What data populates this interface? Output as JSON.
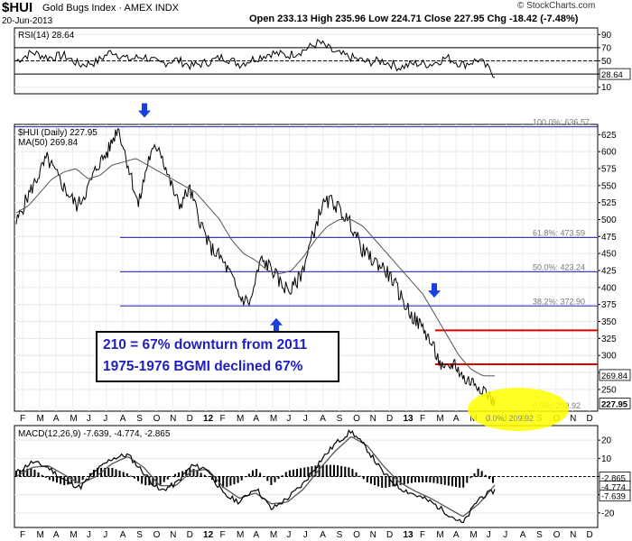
{
  "header": {
    "symbol": "$HUI",
    "name": "Gold Bugs Index · AMEX INDX",
    "date": "20-Jun-2013",
    "ohlc": "Open 233.13  High 235.96  Low 224.71  Close 227.95  Chg -18.42 (-7.48%)",
    "brand": "© StockCharts.com"
  },
  "colors": {
    "fib": "#2020b0",
    "resistance": "#e00000",
    "arrow": "#1a3ee0",
    "annotation_text": "#1f1fbf",
    "highlight": "#ffff00"
  },
  "chart_data": [
    {
      "type": "line",
      "title": "RSI(14) 28.64",
      "legend": "RSI(14) 28.64",
      "y_ticks": [
        10,
        30,
        50,
        70,
        90
      ],
      "ylim": [
        0,
        100
      ],
      "last_value_label": "28.64",
      "reference_lines": [
        30,
        50,
        70
      ],
      "series": [
        {
          "name": "RSI(14)",
          "approx_values": [
            50,
            63,
            55,
            58,
            44,
            48,
            65,
            52,
            57,
            45,
            52,
            42,
            48,
            56,
            45,
            54,
            62,
            58,
            66,
            78,
            62,
            55,
            48,
            50,
            40,
            46,
            45,
            55,
            44,
            52,
            28.64
          ]
        }
      ]
    },
    {
      "type": "line",
      "title": "$HUI (Daily) 227.95",
      "legend": [
        "$HUI (Daily) 227.95",
        "MA(50) 269.84"
      ],
      "y_ticks": [
        250,
        275,
        300,
        325,
        350,
        375,
        400,
        425,
        450,
        475,
        500,
        525,
        550,
        575,
        600,
        625
      ],
      "ylim": [
        218,
        640
      ],
      "x_tick_labels": [
        "F",
        "M",
        "A",
        "M",
        "J",
        "J",
        "A",
        "S",
        "O",
        "N",
        "D",
        "12",
        "F",
        "M",
        "A",
        "M",
        "J",
        "J",
        "A",
        "S",
        "O",
        "N",
        "D",
        "13",
        "F",
        "M",
        "A",
        "M",
        "J",
        "J",
        "A",
        "S",
        "O",
        "N",
        "D"
      ],
      "last_price_label": "227.95",
      "ma_label": "269.84",
      "series": [
        {
          "name": "$HUI (Daily)",
          "approx_values": [
            495,
            530,
            560,
            590,
            565,
            540,
            520,
            545,
            580,
            600,
            636.57,
            580,
            520,
            590,
            610,
            560,
            520,
            545,
            500,
            460,
            445,
            420,
            385,
            378,
            440,
            430,
            405,
            395,
            420,
            470,
            520,
            528,
            510,
            490,
            455,
            440,
            430,
            410,
            380,
            355,
            340,
            310,
            275,
            290,
            265,
            260,
            250,
            227.95
          ]
        },
        {
          "name": "MA(50)",
          "approx_values": [
            510,
            520,
            540,
            560,
            570,
            575,
            560,
            565,
            580,
            585,
            590,
            580,
            570,
            560,
            550,
            540,
            520,
            500,
            470,
            450,
            440,
            425,
            420,
            425,
            445,
            470,
            490,
            500,
            500,
            490,
            470,
            450,
            430,
            410,
            390,
            360,
            330,
            300,
            280,
            270,
            269.84
          ]
        }
      ],
      "fibonacci": [
        {
          "label": "100.0%: 636.57",
          "value": 636.57
        },
        {
          "label": "61.8%: 473.59",
          "value": 473.59
        },
        {
          "label": "50.0%: 423.24",
          "value": 423.24
        },
        {
          "label": "38.2%: 372.90",
          "value": 372.9
        },
        {
          "label": "0.0%: 209.92",
          "value": 209.92
        }
      ],
      "resistance_lines": [
        337,
        287
      ],
      "annotations": [
        "210 = 67% downturn from 2011",
        "1975-1976 BGMI declined 67%"
      ]
    },
    {
      "type": "line",
      "title": "MACD(12,26,9) -7.639, -4.774, -2.865",
      "legend": "MACD(12,26,9) -7.639, -4.774, -2.865",
      "y_ticks": [
        -20,
        -10,
        0,
        10,
        20
      ],
      "ylim": [
        -28,
        28
      ],
      "last_labels": [
        "-2.865",
        "-4.774",
        "-7.639"
      ],
      "x_tick_labels": [
        "F",
        "M",
        "A",
        "M",
        "J",
        "J",
        "A",
        "S",
        "O",
        "N",
        "D",
        "12",
        "F",
        "M",
        "A",
        "M",
        "J",
        "J",
        "A",
        "S",
        "O",
        "N",
        "D",
        "13",
        "F",
        "M",
        "A",
        "M",
        "J",
        "J",
        "A",
        "S",
        "O",
        "N",
        "D"
      ],
      "series": [
        {
          "name": "MACD",
          "approx_values": [
            2,
            8,
            5,
            -2,
            -6,
            3,
            10,
            12,
            2,
            -8,
            -4,
            6,
            4,
            -10,
            -14,
            -6,
            -18,
            -12,
            -4,
            8,
            18,
            25,
            15,
            2,
            -6,
            -10,
            -14,
            -20,
            -26,
            -12,
            -7.639
          ]
        },
        {
          "name": "Signal",
          "approx_values": [
            0,
            5,
            6,
            1,
            -4,
            0,
            7,
            11,
            5,
            -5,
            -5,
            3,
            4,
            -6,
            -12,
            -9,
            -15,
            -14,
            -7,
            4,
            14,
            22,
            17,
            6,
            -3,
            -8,
            -12,
            -17,
            -22,
            -15,
            -4.774
          ]
        }
      ]
    }
  ]
}
